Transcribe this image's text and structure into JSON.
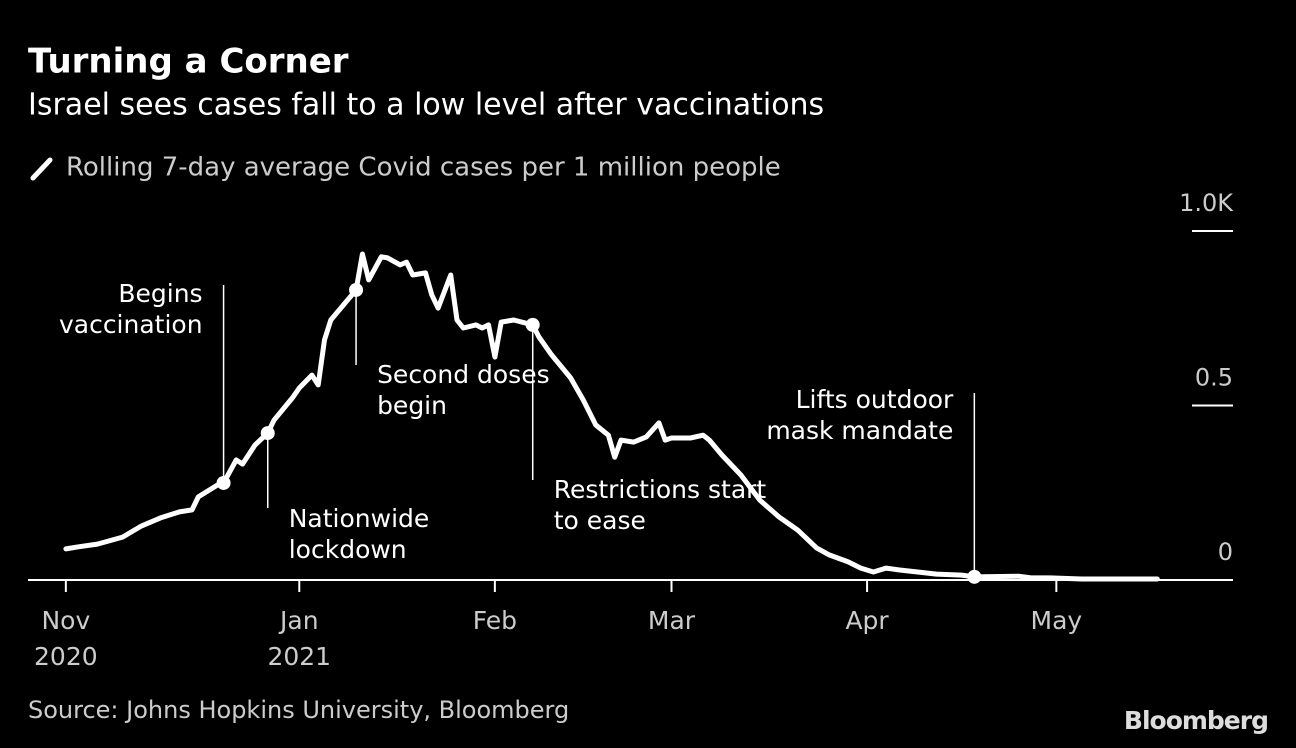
{
  "chart_data": {
    "type": "line",
    "title": "Turning a Corner",
    "subtitle": "Israel sees cases fall to a low level after vaccinations",
    "source": "Source: Johns Hopkins University, Bloomberg",
    "brand": "Bloomberg",
    "series": [
      {
        "name": "Rolling 7-day average Covid cases per 1 million people",
        "color": "#ffffff",
        "x": [
          -37,
          -35,
          -32,
          -28,
          -25,
          -22,
          -19,
          -17,
          -16,
          -13,
          -12,
          -10,
          -9,
          -7,
          -5,
          -4,
          -1,
          0,
          2,
          3,
          4,
          5,
          7,
          9,
          10,
          11,
          13,
          14,
          16,
          17,
          18,
          20,
          21,
          22,
          24,
          25,
          26,
          28,
          29,
          30,
          31,
          32,
          34,
          37,
          38,
          40,
          43,
          45,
          47,
          49,
          50,
          51,
          53,
          55,
          57,
          58,
          59,
          62,
          64,
          65,
          67,
          70,
          73,
          76,
          79,
          82,
          84,
          87,
          89,
          91,
          93,
          95,
          98,
          101,
          105,
          107,
          114,
          116,
          119,
          124,
          136
        ],
        "values": [
          0.089,
          0.095,
          0.103,
          0.123,
          0.155,
          0.178,
          0.195,
          0.201,
          0.238,
          0.272,
          0.278,
          0.344,
          0.332,
          0.387,
          0.421,
          0.458,
          0.524,
          0.55,
          0.587,
          0.559,
          0.688,
          0.745,
          0.788,
          0.831,
          0.934,
          0.86,
          0.926,
          0.923,
          0.903,
          0.911,
          0.874,
          0.88,
          0.817,
          0.779,
          0.874,
          0.745,
          0.722,
          0.731,
          0.722,
          0.731,
          0.639,
          0.739,
          0.745,
          0.731,
          0.696,
          0.645,
          0.579,
          0.516,
          0.444,
          0.415,
          0.352,
          0.401,
          0.395,
          0.41,
          0.45,
          0.401,
          0.407,
          0.407,
          0.415,
          0.401,
          0.358,
          0.301,
          0.229,
          0.181,
          0.143,
          0.092,
          0.072,
          0.052,
          0.034,
          0.023,
          0.034,
          0.029,
          0.023,
          0.017,
          0.014,
          0.009,
          0.011,
          0.006,
          0.006,
          0.003,
          0.003
        ]
      }
    ],
    "annotations": [
      {
        "lines": [
          "Begins",
          "vaccination"
        ],
        "x": -12
      },
      {
        "lines": [
          "Nationwide",
          "lockdown"
        ],
        "x": -5
      },
      {
        "lines": [
          "Second doses",
          "begin"
        ],
        "x": 9
      },
      {
        "lines": [
          "Restrictions start",
          "to ease"
        ],
        "x": 37
      },
      {
        "lines": [
          "Lifts outdoor",
          "mask mandate"
        ],
        "x": 107
      }
    ],
    "xlim": [
      -43,
      148
    ],
    "xticks": [
      {
        "value": -37,
        "label": "Nov",
        "sublabel": "2020"
      },
      {
        "value": 0,
        "label": "Jan",
        "sublabel": "2021"
      },
      {
        "value": 31,
        "label": "Feb"
      },
      {
        "value": 59,
        "label": "Mar"
      },
      {
        "value": 90,
        "label": "Apr"
      },
      {
        "value": 120,
        "label": "May"
      }
    ],
    "ylim": [
      0,
      1
    ],
    "yticks": [
      0,
      0.5,
      {
        "value": 1,
        "label": "1.0K"
      }
    ]
  }
}
